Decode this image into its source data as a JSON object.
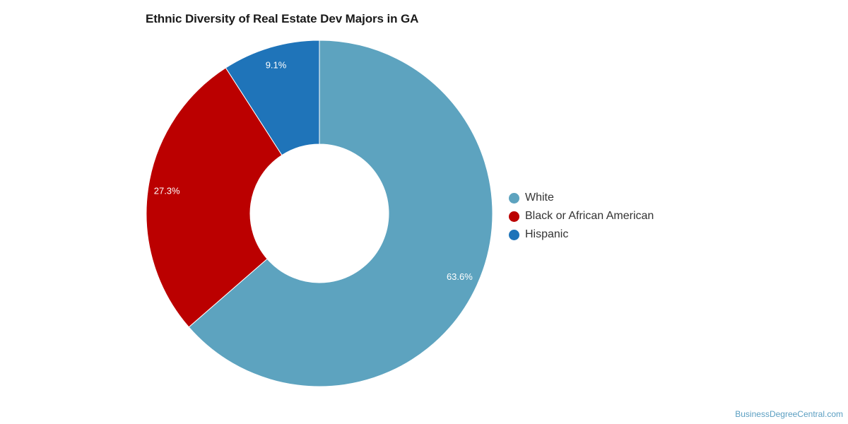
{
  "chart_data": {
    "type": "pie",
    "donut": true,
    "title": "Ethnic Diversity of Real Estate Dev Majors in GA",
    "categories": [
      "White",
      "Black or African American",
      "Hispanic"
    ],
    "values": [
      63.6,
      27.3,
      9.1
    ],
    "labels": [
      "63.6%",
      "27.3%",
      "9.1%"
    ],
    "colors": [
      "#5da3bf",
      "#bb0000",
      "#1f74b9"
    ],
    "legend_placement": "right"
  },
  "legend": {
    "items": [
      {
        "label": "White",
        "color": "#5da3bf"
      },
      {
        "label": "Black or African American",
        "color": "#bb0000"
      },
      {
        "label": "Hispanic",
        "color": "#1f74b9"
      }
    ]
  },
  "watermark": "BusinessDegreeCentral.com"
}
